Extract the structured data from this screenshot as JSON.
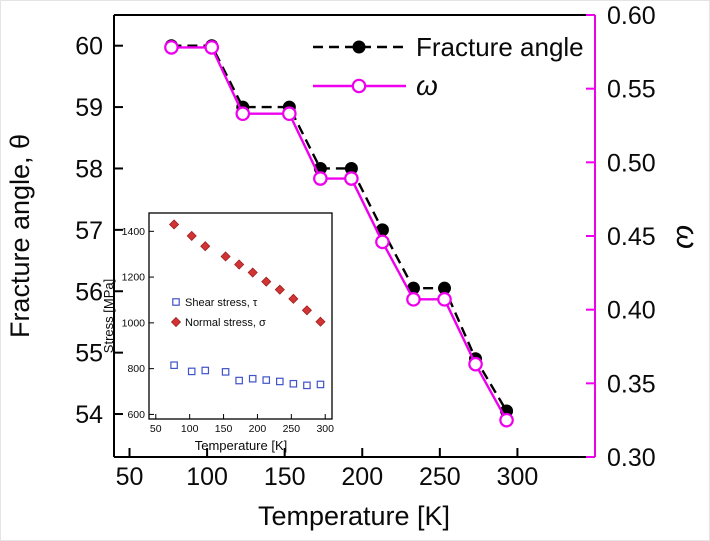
{
  "figure": {
    "background": "#ffffff",
    "accent_magenta": "#ee00ee",
    "frame_color": "#000000"
  },
  "chart_data": [
    {
      "id": "main",
      "type": "line",
      "title": "",
      "xlabel": "Temperature [K]",
      "ylabel_left": "Fracture angle, θ",
      "ylabel_right": "ω",
      "xlim": [
        40,
        350
      ],
      "ylim_left": [
        53.3,
        60.5
      ],
      "ylim_right": [
        0.3,
        0.6
      ],
      "x_tick_labels": [
        "50",
        "100",
        "150",
        "200",
        "250",
        "300"
      ],
      "y_left_tick_labels": [
        "54",
        "55",
        "56",
        "57",
        "58",
        "59",
        "60"
      ],
      "y_right_tick_labels": [
        "0.30",
        "0.35",
        "0.40",
        "0.45",
        "0.50",
        "0.55",
        "0.60"
      ],
      "grid": false,
      "legend_position": "top-right",
      "x": [
        77,
        103,
        123,
        153,
        173,
        193,
        213,
        233,
        253,
        273,
        293
      ],
      "series": [
        {
          "name": "Fracture angle",
          "axis": "left",
          "color": "#000000",
          "linestyle": "dashed",
          "marker": "filled-circle",
          "values": [
            60.0,
            60.0,
            59.0,
            59.0,
            58.0,
            58.0,
            57.0,
            56.05,
            56.05,
            54.9,
            54.05
          ]
        },
        {
          "name": "ω",
          "axis": "right",
          "color": "#ee00ee",
          "linestyle": "solid",
          "marker": "open-circle",
          "values": [
            0.578,
            0.578,
            0.533,
            0.533,
            0.489,
            0.489,
            0.446,
            0.407,
            0.407,
            0.363,
            0.325
          ]
        }
      ]
    },
    {
      "id": "inset",
      "type": "scatter",
      "title": "",
      "xlabel": "Temperature [K]",
      "ylabel": "Stress [MPa]",
      "xlim": [
        40,
        310
      ],
      "ylim": [
        580,
        1480
      ],
      "x_tick_labels": [
        "50",
        "100",
        "150",
        "200",
        "250",
        "300"
      ],
      "y_tick_labels": [
        "600",
        "800",
        "1000",
        "1200",
        "1400"
      ],
      "grid": false,
      "legend_position": "center-left",
      "x": [
        77,
        103,
        123,
        153,
        173,
        193,
        213,
        233,
        253,
        273,
        293
      ],
      "series": [
        {
          "name": "Shear stress, τ",
          "color": "#4053c8",
          "edge": "#4053c8",
          "marker": "open-square",
          "values": [
            815,
            788,
            792,
            786,
            748,
            756,
            750,
            744,
            734,
            727,
            731
          ]
        },
        {
          "name": "Normal stress, σ",
          "color": "#d23434",
          "edge": "#9c2020",
          "marker": "filled-diamond",
          "values": [
            1430,
            1380,
            1335,
            1290,
            1255,
            1220,
            1180,
            1145,
            1105,
            1055,
            1005
          ]
        }
      ]
    }
  ]
}
